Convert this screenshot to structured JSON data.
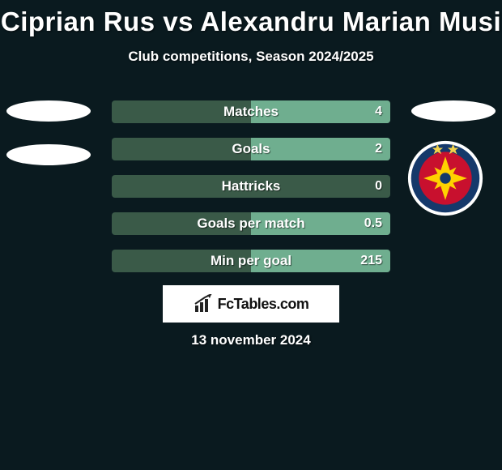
{
  "background_color": "#0a1a1f",
  "title": "Ciprian Rus vs Alexandru Marian Musi",
  "title_fontsize": 33,
  "subtitle": "Club competitions, Season 2024/2025",
  "subtitle_fontsize": 17,
  "date": "13 november 2024",
  "bar_style": {
    "height": 28,
    "gap": 18,
    "bg_color": "#3a5a48",
    "fill_color": "#6fae8f",
    "label_color": "#ffffff",
    "label_fontsize": 17,
    "value_fontsize": 16,
    "border_radius": 4
  },
  "stats": [
    {
      "label": "Matches",
      "left_value": "",
      "right_value": "4",
      "left_fill_pct": 0,
      "right_fill_pct": 100
    },
    {
      "label": "Goals",
      "left_value": "",
      "right_value": "2",
      "left_fill_pct": 0,
      "right_fill_pct": 100
    },
    {
      "label": "Hattricks",
      "left_value": "",
      "right_value": "0",
      "left_fill_pct": 0,
      "right_fill_pct": 0
    },
    {
      "label": "Goals per match",
      "left_value": "",
      "right_value": "0.5",
      "left_fill_pct": 0,
      "right_fill_pct": 100
    },
    {
      "label": "Min per goal",
      "left_value": "",
      "right_value": "215",
      "left_fill_pct": 0,
      "right_fill_pct": 100
    }
  ],
  "left_player": {
    "placeholder_ovals": 2,
    "oval_color": "#ffffff"
  },
  "right_player": {
    "placeholder_ovals": 1,
    "oval_color": "#ffffff",
    "badge": {
      "ring_color": "#15396b",
      "face_color": "#c8102e",
      "star_color": "#ffd200",
      "top_star_color": "#f2d24b"
    }
  },
  "brand": {
    "text": "FcTables.com",
    "box_bg": "#ffffff",
    "text_color": "#111111",
    "icon_color": "#222222"
  }
}
